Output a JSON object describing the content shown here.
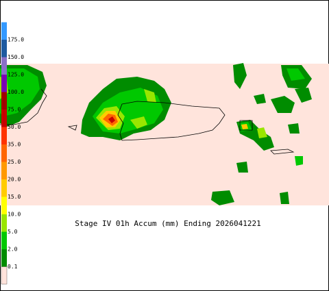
{
  "title": "Stage IV 01h Accum (mm) Ending 2026041221",
  "legend": {
    "bottom_color": "#ffe4dc",
    "levels": [
      {
        "label": "0.1",
        "color": "#008c00"
      },
      {
        "label": "2.0",
        "color": "#00c800"
      },
      {
        "label": "5.0",
        "color": "#99e600"
      },
      {
        "label": "10.0",
        "color": "#ffff00"
      },
      {
        "label": "15.0",
        "color": "#ffcc00"
      },
      {
        "label": "20.0",
        "color": "#ff9900"
      },
      {
        "label": "25.0",
        "color": "#ff6600"
      },
      {
        "label": "35.0",
        "color": "#ff3300"
      },
      {
        "label": "50.0",
        "color": "#c80000"
      },
      {
        "label": "75.0",
        "color": "#a00000"
      },
      {
        "label": "100.0",
        "color": "#7a00b4"
      },
      {
        "label": "125.0",
        "color": "#8a70c8"
      },
      {
        "label": "150.0",
        "color": "#1e5aa0"
      },
      {
        "label": "175.0",
        "color": "#3399ff"
      }
    ]
  }
}
